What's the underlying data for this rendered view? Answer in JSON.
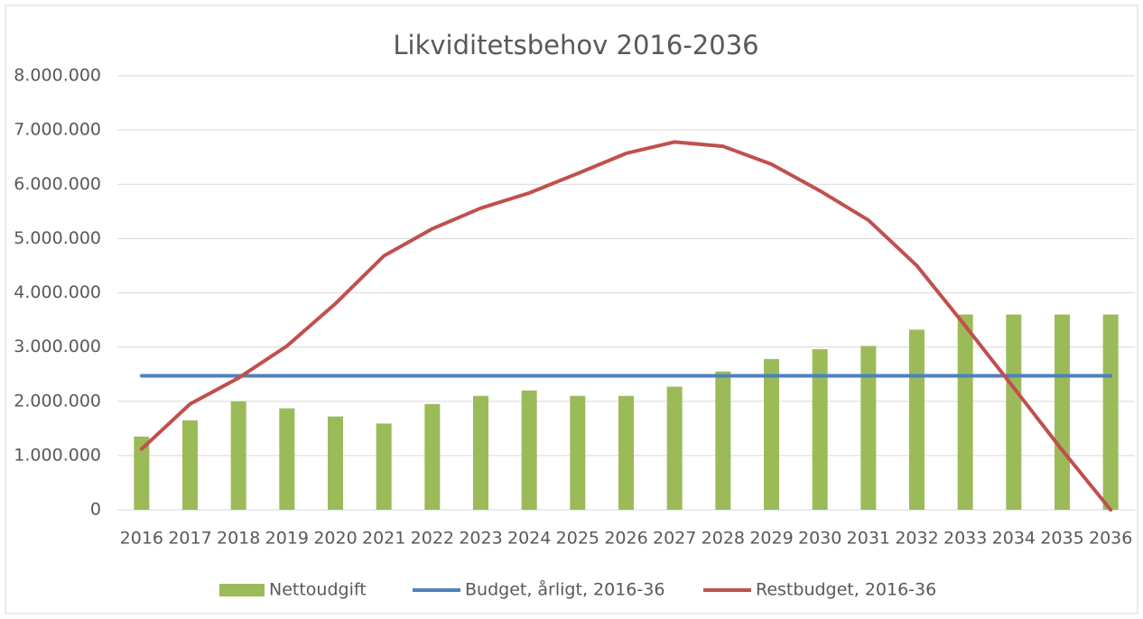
{
  "chart_data": {
    "type": "bar_line",
    "title": "Likviditetsbehov 2016-2036",
    "categories": [
      "2016",
      "2017",
      "2018",
      "2019",
      "2020",
      "2021",
      "2022",
      "2023",
      "2024",
      "2025",
      "2026",
      "2027",
      "2028",
      "2029",
      "2030",
      "2031",
      "2032",
      "2033",
      "2034",
      "2035",
      "2036"
    ],
    "series": [
      {
        "name": "Nettoudgift",
        "type": "bar",
        "color": "#9bbb59",
        "values": [
          1350000,
          1650000,
          2000000,
          1870000,
          1720000,
          1590000,
          1950000,
          2100000,
          2200000,
          2100000,
          2100000,
          2270000,
          2550000,
          2780000,
          2960000,
          3020000,
          3320000,
          3600000,
          3600000,
          3600000,
          3600000
        ]
      },
      {
        "name": "Budget, årligt, 2016-36",
        "type": "line",
        "color": "#4f81bd",
        "values": [
          2470000,
          2470000,
          2470000,
          2470000,
          2470000,
          2470000,
          2470000,
          2470000,
          2470000,
          2470000,
          2470000,
          2470000,
          2470000,
          2470000,
          2470000,
          2470000,
          2470000,
          2470000,
          2470000,
          2470000,
          2470000
        ]
      },
      {
        "name": "Restbudget, 2016-36",
        "type": "line",
        "color": "#c0504d",
        "values": [
          1120000,
          1950000,
          2430000,
          3020000,
          3800000,
          4680000,
          5180000,
          5560000,
          5840000,
          6200000,
          6570000,
          6780000,
          6700000,
          6370000,
          5880000,
          5340000,
          4500000,
          3390000,
          2250000,
          1100000,
          0
        ]
      }
    ],
    "ylim": [
      0,
      8000000
    ],
    "yticks": [
      0,
      {
        "value": 1000000,
        "label": "1.000.000"
      },
      {
        "value": 2000000,
        "label": "2.000.000"
      },
      {
        "value": 3000000,
        "label": "3.000.000"
      },
      {
        "value": 4000000,
        "label": "4.000.000"
      },
      {
        "value": 5000000,
        "label": "5.000.000"
      },
      {
        "value": 6000000,
        "label": "6.000.000"
      },
      {
        "value": 7000000,
        "label": "7.000.000"
      },
      {
        "value": 8000000,
        "label": "8.000.000"
      }
    ],
    "grid": true,
    "legend": "bottom"
  }
}
